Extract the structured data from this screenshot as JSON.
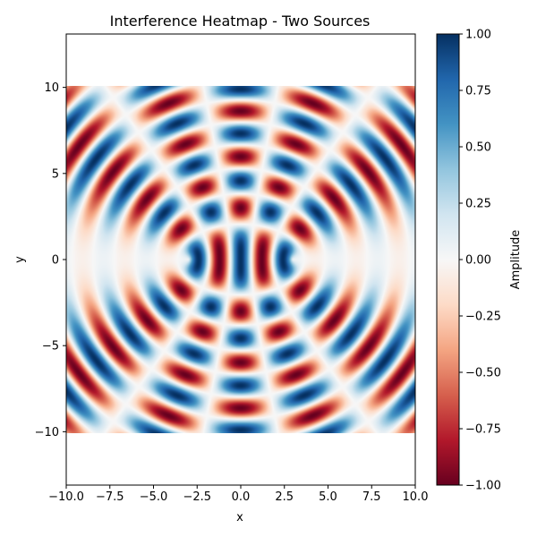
{
  "chart_data": {
    "type": "heatmap",
    "title": "Interference Heatmap - Two Sources",
    "xlabel": "x",
    "ylabel": "y",
    "xlim": [
      -10,
      10
    ],
    "ylim": [
      -13.1,
      13.1
    ],
    "data_extent": {
      "x": [
        -10,
        10
      ],
      "y": [
        -10,
        10
      ]
    },
    "x_ticks": [
      -10.0,
      -7.5,
      -5.0,
      -2.5,
      0.0,
      2.5,
      5.0,
      7.5,
      10.0
    ],
    "x_tick_labels": [
      "−10.0",
      "−7.5",
      "−5.0",
      "−2.5",
      "0.0",
      "2.5",
      "5.0",
      "7.5",
      "10.0"
    ],
    "y_ticks": [
      -10,
      -5,
      0,
      5,
      10
    ],
    "y_tick_labels": [
      "−10",
      "−5",
      "0",
      "5",
      "10"
    ],
    "sources": [
      {
        "x": -3,
        "y": 0
      },
      {
        "x": 3,
        "y": 0
      }
    ],
    "wavenumber": 2.6,
    "colormap": "RdBu",
    "colorbar": {
      "label": "Amplitude",
      "range": [
        -1,
        1
      ],
      "ticks": [
        1.0,
        0.75,
        0.5,
        0.25,
        0.0,
        -0.25,
        -0.5,
        -0.75,
        -1.0
      ],
      "tick_labels": [
        "1.00",
        "0.75",
        "0.50",
        "0.25",
        "0.00",
        "−0.25",
        "−0.50",
        "−0.75",
        "−1.00"
      ],
      "placement": "right"
    },
    "grid": false
  }
}
